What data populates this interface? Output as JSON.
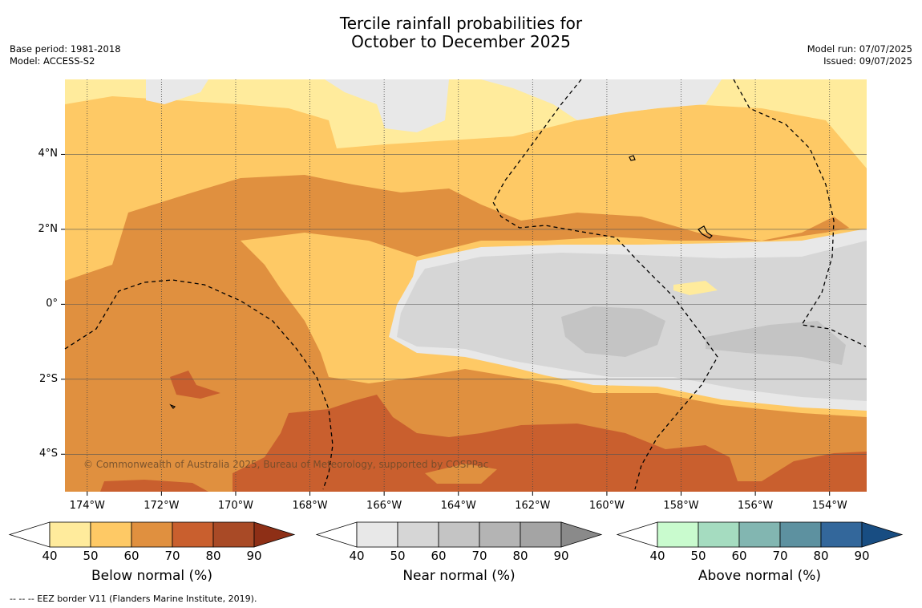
{
  "title_line1": "Tercile rainfall probabilities for",
  "title_line2": "October to December 2025",
  "meta_left": [
    "Base period: 1981-2018",
    "Model: ACCESS-S2"
  ],
  "meta_right": [
    "Model run: 07/07/2025",
    "Issued: 09/07/2025"
  ],
  "copyright": "© Commonwealth of Australia 2025, Bureau of Meteorology, supported by COSPPac",
  "footer": "-- -- -- EEZ border V11 (Flanders Marine Institute, 2019).",
  "map": {
    "lon_range": [
      -174.6,
      -153.0
    ],
    "lat_range": [
      -5.0,
      6.0
    ],
    "lon_ticks": [
      -174,
      -172,
      -170,
      -168,
      -166,
      -164,
      -162,
      -160,
      -158,
      -156,
      -154
    ],
    "lon_tick_labels": [
      "174°W",
      "172°W",
      "170°W",
      "168°W",
      "166°W",
      "164°W",
      "162°W",
      "160°W",
      "158°W",
      "156°W",
      "154°W"
    ],
    "lat_ticks": [
      4,
      2,
      0,
      -2,
      -4
    ],
    "lat_tick_labels": [
      "4°N",
      "2°N",
      "0°",
      "2°S",
      "4°S"
    ]
  },
  "colorbars": [
    {
      "name": "below",
      "label": "Below normal (%)",
      "colors": [
        "#ffffff",
        "#ffeb9c",
        "#fec965",
        "#e0903f",
        "#c95f2e",
        "#a94a26",
        "#8e2f16"
      ]
    },
    {
      "name": "near",
      "label": "Near normal (%)",
      "colors": [
        "#ffffff",
        "#e8e8e8",
        "#d6d6d6",
        "#c4c4c4",
        "#b4b4b4",
        "#a4a4a4",
        "#8a8a8a"
      ]
    },
    {
      "name": "above",
      "label": "Above normal (%)",
      "colors": [
        "#ffffff",
        "#c9fbce",
        "#a5dcc0",
        "#82b6b1",
        "#5d91a0",
        "#33679b",
        "#184d82"
      ]
    }
  ],
  "colorbar_ticks": [
    "40",
    "50",
    "60",
    "70",
    "80",
    "90"
  ],
  "palette": {
    "below50": "#ffeb9c",
    "below60": "#fec965",
    "below70": "#e0903f",
    "below80": "#c95f2e",
    "near50": "#e8e8e8",
    "near60": "#d6d6d6",
    "near70": "#c4c4c4"
  }
}
